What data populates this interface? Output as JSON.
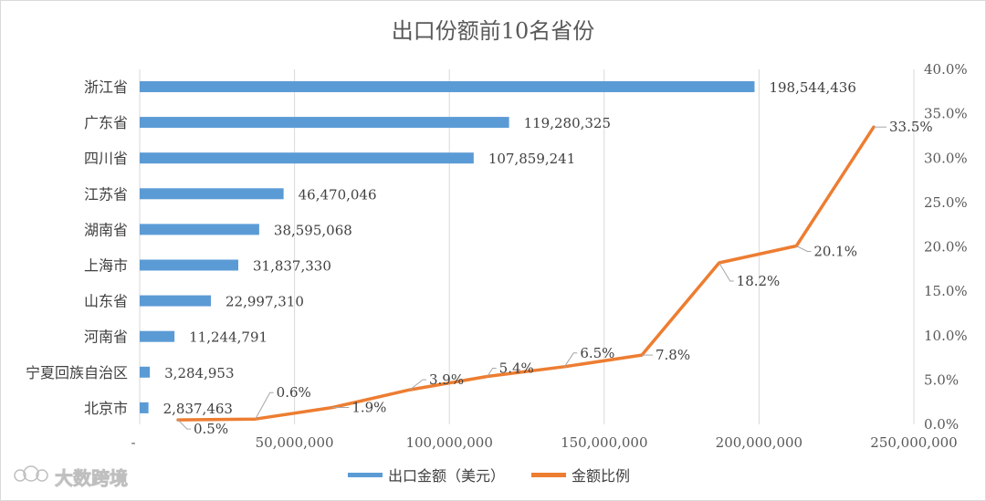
{
  "chart_data": {
    "type": "bar",
    "title": "出口份额前10名省份",
    "categories": [
      "浙江省",
      "广东省",
      "四川省",
      "江苏省",
      "湖南省",
      "上海市",
      "山东省",
      "河南省",
      "宁夏回族自治区",
      "北京市"
    ],
    "series": [
      {
        "name": "出口金额（美元）",
        "type": "bar",
        "color": "#5b9bd5",
        "values": [
          198544436,
          119280325,
          107859241,
          46470046,
          38595068,
          31837330,
          22997310,
          11244791,
          3284953,
          2837463
        ],
        "value_labels": [
          "198,544,436",
          "119,280,325",
          "107,859,241",
          "46,470,046",
          "38,595,068",
          "31,837,330",
          "22,997,310",
          "11,244,791",
          "3,284,953",
          "2,837,463"
        ]
      },
      {
        "name": "金额比例",
        "type": "line",
        "color": "#ed7d31",
        "values": [
          0.5,
          0.6,
          1.9,
          3.9,
          5.4,
          6.5,
          7.8,
          18.2,
          20.1,
          33.5
        ],
        "value_labels": [
          "0.5%",
          "0.6%",
          "1.9%",
          "3.9%",
          "5.4%",
          "6.5%",
          "7.8%",
          "18.2%",
          "20.1%",
          "33.5%"
        ]
      }
    ],
    "x_axis": {
      "range": [
        0,
        250000000
      ],
      "tick_values": [
        0,
        50000000,
        100000000,
        150000000,
        200000000,
        250000000
      ],
      "tick_labels": [
        "-",
        "50,000,000",
        "100,000,000",
        "150,000,000",
        "200,000,000",
        "250,000,000"
      ]
    },
    "y2_axis": {
      "range": [
        0,
        40
      ],
      "tick_values": [
        0,
        5,
        10,
        15,
        20,
        25,
        30,
        35,
        40
      ],
      "tick_labels": [
        "0.0%",
        "5.0%",
        "10.0%",
        "15.0%",
        "20.0%",
        "25.0%",
        "30.0%",
        "35.0%",
        "40.0%"
      ]
    },
    "legend_position": "bottom",
    "grid": "vertical",
    "watermark": "大数跨境"
  }
}
